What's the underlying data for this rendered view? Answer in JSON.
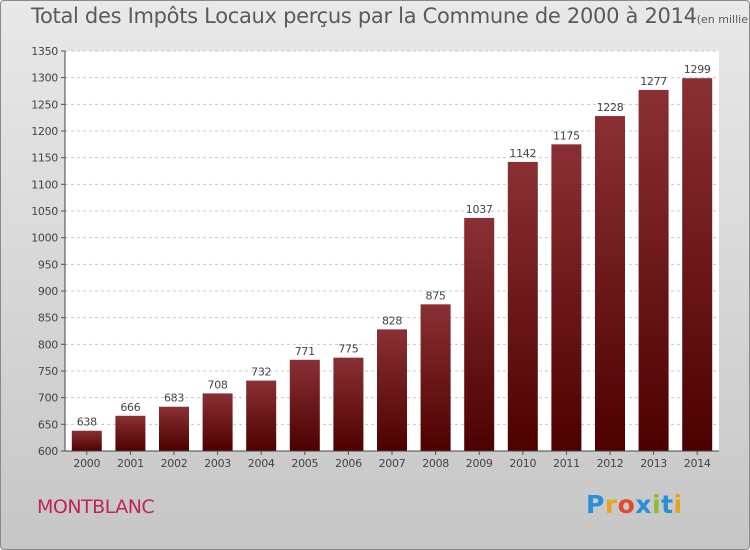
{
  "chart_data": {
    "type": "bar",
    "title": "Total des Impôts Locaux perçus par la Commune de 2000 à 2014",
    "subtitle": "(en milliers d'€)",
    "categories": [
      "2000",
      "2001",
      "2002",
      "2003",
      "2004",
      "2005",
      "2006",
      "2007",
      "2008",
      "2009",
      "2010",
      "2011",
      "2012",
      "2013",
      "2014"
    ],
    "values": [
      638,
      666,
      683,
      708,
      732,
      771,
      775,
      828,
      875,
      1037,
      1142,
      1175,
      1228,
      1277,
      1299
    ],
    "ylim": [
      600,
      1350
    ],
    "yticks": [
      600,
      650,
      700,
      750,
      800,
      850,
      900,
      950,
      1000,
      1050,
      1100,
      1150,
      1200,
      1250,
      1300,
      1350
    ],
    "xlabel": "",
    "ylabel": "",
    "grid": "horizontal-dashed",
    "data_labels": true,
    "bar_colors": {
      "top": "#8a3034",
      "bottom": "#4d0000"
    }
  },
  "commune": "MONTBLANC",
  "logo": {
    "letters": [
      "P",
      "r",
      "o",
      "x",
      "i",
      "t",
      "i"
    ],
    "colors": [
      "#2a8ed8",
      "#e8a321",
      "#e0492d",
      "#2a8ed8",
      "#8cbd2f",
      "#2a8ed8",
      "#e8a321"
    ]
  }
}
